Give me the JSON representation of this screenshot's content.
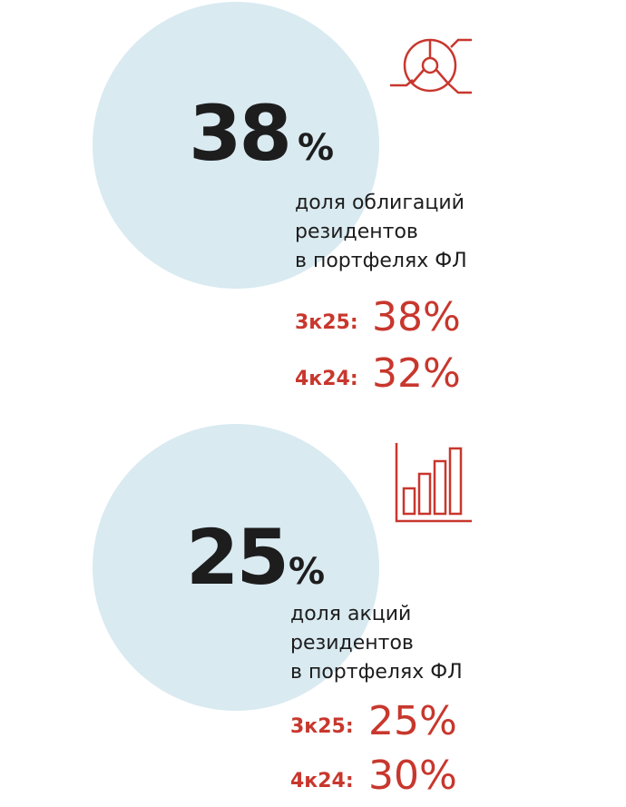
{
  "blocks": [
    {
      "value": "38",
      "unit": "%",
      "description": [
        "доля облигаций",
        "резидентов",
        "в портфелях ФЛ"
      ],
      "rows": [
        {
          "label": "3к25:",
          "value": "38%"
        },
        {
          "label": "4к24:",
          "value": "32%"
        }
      ]
    },
    {
      "value": "25",
      "unit": "%",
      "description": [
        "доля акций",
        "резидентов",
        "в портфелях ФЛ"
      ],
      "rows": [
        {
          "label": "3к25:",
          "value": "25%"
        },
        {
          "label": "4к24:",
          "value": "30%"
        }
      ]
    }
  ]
}
